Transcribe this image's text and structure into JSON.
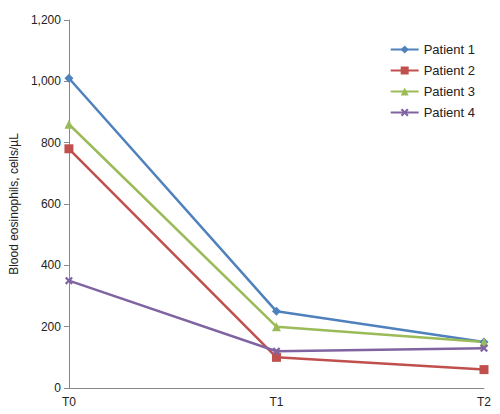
{
  "chart_data": {
    "type": "line",
    "y_label": "Blood eosinophils, cells/µL",
    "categories": [
      "T0",
      "T1",
      "T2"
    ],
    "series": [
      {
        "name": "Patient 1",
        "color": "#4F81BD",
        "marker": "diamond",
        "values": [
          1010,
          250,
          150
        ]
      },
      {
        "name": "Patient 2",
        "color": "#C0504D",
        "marker": "square",
        "values": [
          780,
          100,
          60
        ]
      },
      {
        "name": "Patient 3",
        "color": "#9BBB59",
        "marker": "triangle",
        "values": [
          860,
          200,
          150
        ]
      },
      {
        "name": "Patient 4",
        "color": "#8064A2",
        "marker": "x",
        "values": [
          350,
          120,
          130
        ]
      }
    ],
    "ylim": [
      0,
      1200
    ],
    "yticks": [
      0,
      200,
      400,
      600,
      800,
      {
        "value": 1000,
        "label": "1,000"
      },
      {
        "value": 1200,
        "label": "1,200"
      }
    ],
    "grid": false,
    "legend": "top-right"
  }
}
